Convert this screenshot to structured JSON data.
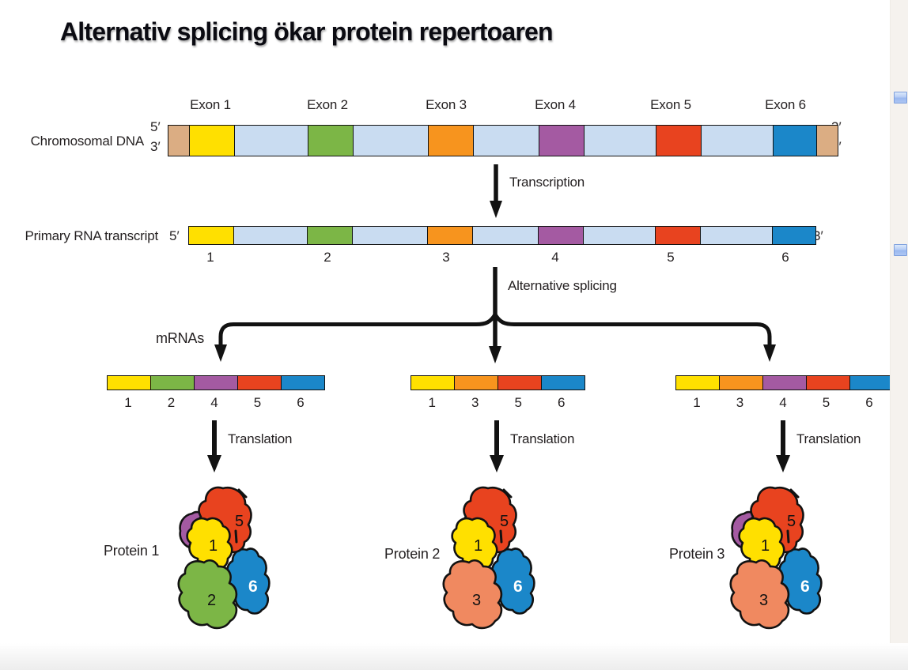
{
  "title": "Alternativ splicing ökar protein repertoaren",
  "labels": {
    "chromosomal_dna": "Chromosomal DNA",
    "primary_rna_transcript": "Primary RNA transcript",
    "transcription": "Transcription",
    "alternative_splicing": "Alternative splicing",
    "mrnas": "mRNAs",
    "translation": "Translation"
  },
  "primes": {
    "dna_left_top": "5′",
    "dna_left_bottom": "3′",
    "dna_right_top": "3′",
    "dna_right_bottom": "5′",
    "rna_left": "5′",
    "rna_right": "3′"
  },
  "colors": {
    "exon": {
      "1": "#FFE000",
      "2": "#7CB646",
      "3": "#F7941E",
      "4": "#A45AA2",
      "5": "#E8431F",
      "6": "#1B87C9"
    },
    "intron": "#C9DCF1",
    "cap": "#DBAD83",
    "protein_salmon": "#F08960",
    "outline": "#121212",
    "handle_blue": "#9ab8ef"
  },
  "dna": {
    "exon_labels": [
      "Exon 1",
      "Exon 2",
      "Exon 3",
      "Exon 4",
      "Exon 5",
      "Exon 6"
    ],
    "segments": [
      {
        "t": "cap"
      },
      {
        "t": "exon",
        "n": 1
      },
      {
        "t": "intron"
      },
      {
        "t": "exon",
        "n": 2
      },
      {
        "t": "intron"
      },
      {
        "t": "exon",
        "n": 3
      },
      {
        "t": "intron"
      },
      {
        "t": "exon",
        "n": 4
      },
      {
        "t": "intron"
      },
      {
        "t": "exon",
        "n": 5
      },
      {
        "t": "intron"
      },
      {
        "t": "exon",
        "n": 6
      },
      {
        "t": "cap"
      }
    ]
  },
  "rna": {
    "exon_numbers": [
      "1",
      "2",
      "3",
      "4",
      "5",
      "6"
    ]
  },
  "mrnas": [
    {
      "exons": [
        1,
        2,
        4,
        5,
        6
      ]
    },
    {
      "exons": [
        1,
        3,
        5,
        6
      ]
    },
    {
      "exons": [
        1,
        3,
        4,
        5,
        6
      ]
    }
  ],
  "proteins": [
    {
      "name": "Protein 1",
      "subunits": [
        4,
        5,
        1,
        2,
        6
      ]
    },
    {
      "name": "Protein 2",
      "subunits": [
        5,
        1,
        3,
        6
      ]
    },
    {
      "name": "Protein 3",
      "subunits": [
        4,
        5,
        1,
        3,
        6
      ]
    }
  ]
}
